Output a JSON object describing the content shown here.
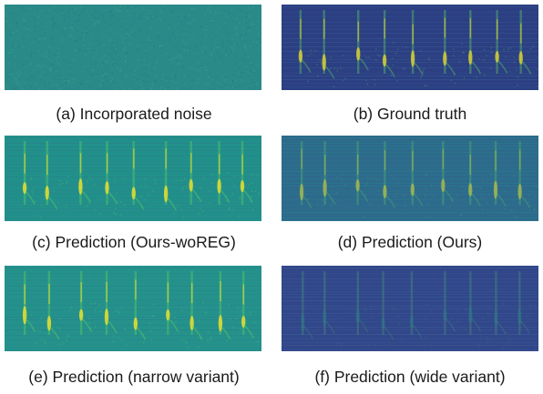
{
  "figure": {
    "panels": [
      {
        "id": "a",
        "caption": "(a) Incorporated noise",
        "style": "noise",
        "background": "#2a8a88"
      },
      {
        "id": "b",
        "caption": "(b) Ground truth",
        "style": "truth",
        "background": "#2b3f82"
      },
      {
        "id": "c",
        "caption": "(c) Prediction (Ours-woREG)",
        "style": "pred_bright",
        "background": "#22908a"
      },
      {
        "id": "d",
        "caption": "(d) Prediction (Ours)",
        "style": "pred_mid",
        "background": "#2d6a8c"
      },
      {
        "id": "e",
        "caption": "(e) Prediction (narrow variant)",
        "style": "pred_bright",
        "background": "#24928b"
      },
      {
        "id": "f",
        "caption": "(f) Prediction (wide variant)",
        "style": "pred_dark",
        "background": "#31478a"
      }
    ],
    "colormap": [
      "#440154",
      "#3b528b",
      "#21918c",
      "#5ec962",
      "#fde725"
    ]
  }
}
